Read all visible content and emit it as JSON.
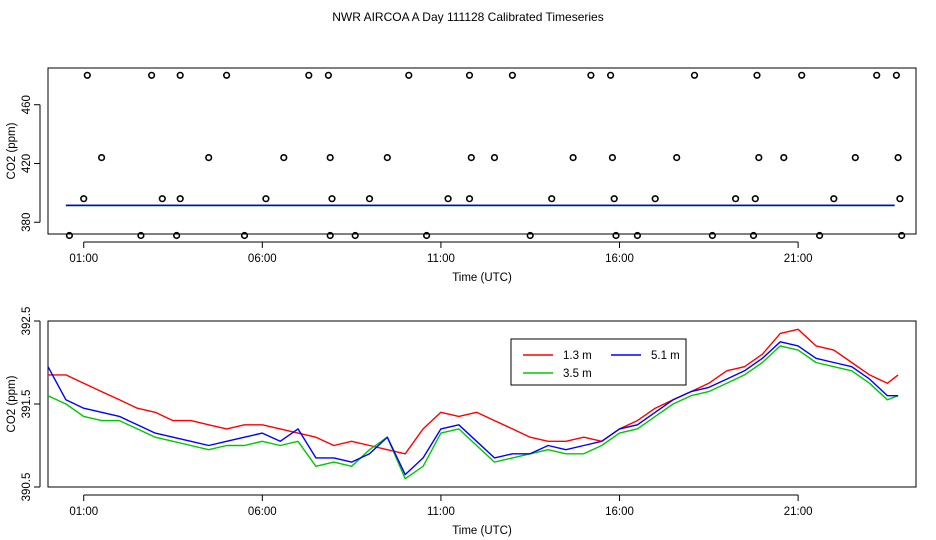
{
  "page_title": "NWR AIRCOA A  Day 111128  Calibrated Timeseries",
  "chart_data": [
    {
      "type": "scatter",
      "title": "",
      "xlabel": "Time (UTC)",
      "ylabel": "CO2 (ppm)",
      "xlim": [
        0.0,
        24.3
      ],
      "ylim": [
        372,
        485
      ],
      "x_ticks": [
        {
          "v": 1,
          "label": "01:00"
        },
        {
          "v": 6,
          "label": "06:00"
        },
        {
          "v": 11,
          "label": "11:00"
        },
        {
          "v": 16,
          "label": "16:00"
        },
        {
          "v": 21,
          "label": "21:00"
        }
      ],
      "y_ticks": [
        {
          "v": 380,
          "label": "380"
        },
        {
          "v": 420,
          "label": "420"
        },
        {
          "v": 460,
          "label": "460"
        }
      ],
      "lines": [
        {
          "color": "#ff0000",
          "x": [
            0.5,
            23.7
          ],
          "y": [
            391.6,
            391.6
          ]
        },
        {
          "color": "#00c800",
          "x": [
            0.5,
            23.7
          ],
          "y": [
            391.4,
            391.4
          ]
        },
        {
          "color": "#0000ff",
          "x": [
            0.5,
            23.7
          ],
          "y": [
            391.5,
            391.5
          ]
        }
      ],
      "points": {
        "marker": "open-circle",
        "x": [
          1.1,
          2.9,
          3.7,
          5.0,
          7.3,
          7.85,
          10.1,
          11.8,
          13.0,
          15.2,
          15.75,
          18.1,
          19.85,
          21.1,
          23.2,
          23.75,
          1.5,
          4.5,
          6.6,
          7.9,
          9.5,
          11.85,
          12.5,
          14.7,
          15.8,
          17.6,
          19.9,
          20.6,
          22.6,
          23.8,
          1.0,
          3.2,
          3.7,
          6.1,
          7.95,
          9.0,
          11.2,
          11.8,
          14.1,
          15.85,
          17.0,
          19.25,
          19.8,
          22.0,
          23.85,
          0.6,
          2.6,
          3.6,
          5.5,
          7.9,
          8.6,
          10.6,
          13.5,
          15.9,
          16.5,
          18.6,
          19.75,
          21.6,
          23.9
        ],
        "y": [
          480,
          480,
          480,
          480,
          480,
          480,
          480,
          480,
          480,
          480,
          480,
          480,
          480,
          480,
          480,
          480,
          424,
          424,
          424,
          424,
          424,
          424,
          424,
          424,
          424,
          424,
          424,
          424,
          424,
          424,
          396,
          396,
          396,
          396,
          396,
          396,
          396,
          396,
          396,
          396,
          396,
          396,
          396,
          396,
          396,
          371,
          371,
          371,
          371,
          371,
          371,
          371,
          371,
          371,
          371,
          371,
          371,
          371,
          371
        ]
      }
    },
    {
      "type": "line",
      "title": "",
      "xlabel": "Time (UTC)",
      "ylabel": "CO2 (ppm)",
      "xlim": [
        0.0,
        24.3
      ],
      "ylim": [
        390.5,
        392.5
      ],
      "x_ticks": [
        {
          "v": 1,
          "label": "01:00"
        },
        {
          "v": 6,
          "label": "06:00"
        },
        {
          "v": 11,
          "label": "11:00"
        },
        {
          "v": 16,
          "label": "16:00"
        },
        {
          "v": 21,
          "label": "21:00"
        }
      ],
      "y_ticks": [
        {
          "v": 390.5,
          "label": "390.5"
        },
        {
          "v": 391.5,
          "label": "391.5"
        },
        {
          "v": 392.5,
          "label": "392.5"
        }
      ],
      "legend_position": "top-right",
      "series": [
        {
          "name": "1.3 m",
          "color": "#ff0000",
          "x": [
            0.0,
            0.5,
            1.0,
            1.5,
            2.0,
            2.5,
            3.0,
            3.5,
            4.0,
            4.5,
            5.0,
            5.5,
            6.0,
            6.5,
            7.0,
            7.5,
            8.0,
            8.5,
            9.0,
            9.5,
            10.0,
            10.5,
            11.0,
            11.5,
            12.0,
            12.5,
            13.0,
            13.5,
            14.0,
            14.5,
            15.0,
            15.5,
            16.0,
            16.5,
            17.0,
            17.5,
            18.0,
            18.5,
            19.0,
            19.5,
            20.0,
            20.5,
            21.0,
            21.5,
            22.0,
            22.5,
            23.0,
            23.5,
            23.8
          ],
          "y": [
            391.85,
            391.85,
            391.75,
            391.65,
            391.55,
            391.45,
            391.4,
            391.3,
            391.3,
            391.25,
            391.2,
            391.25,
            391.25,
            391.2,
            391.15,
            391.1,
            391.0,
            391.05,
            391.0,
            390.95,
            390.9,
            391.2,
            391.4,
            391.35,
            391.4,
            391.3,
            391.2,
            391.1,
            391.05,
            391.05,
            391.1,
            391.05,
            391.2,
            391.3,
            391.45,
            391.55,
            391.65,
            391.75,
            391.9,
            391.95,
            392.1,
            392.35,
            392.4,
            392.2,
            392.15,
            392.0,
            391.85,
            391.75,
            391.85
          ]
        },
        {
          "name": "3.5 m",
          "color": "#00c800",
          "x": [
            0.0,
            0.5,
            1.0,
            1.5,
            2.0,
            2.5,
            3.0,
            3.5,
            4.0,
            4.5,
            5.0,
            5.5,
            6.0,
            6.5,
            7.0,
            7.5,
            8.0,
            8.5,
            9.0,
            9.5,
            10.0,
            10.5,
            11.0,
            11.5,
            12.0,
            12.5,
            13.0,
            13.5,
            14.0,
            14.5,
            15.0,
            15.5,
            16.0,
            16.5,
            17.0,
            17.5,
            18.0,
            18.5,
            19.0,
            19.5,
            20.0,
            20.5,
            21.0,
            21.5,
            22.0,
            22.5,
            23.0,
            23.5,
            23.8
          ],
          "y": [
            391.6,
            391.5,
            391.35,
            391.3,
            391.3,
            391.2,
            391.1,
            391.05,
            391.0,
            390.95,
            391.0,
            391.0,
            391.05,
            391.0,
            391.05,
            390.75,
            390.8,
            390.75,
            390.95,
            391.1,
            390.6,
            390.75,
            391.15,
            391.2,
            391.0,
            390.8,
            390.85,
            390.9,
            390.95,
            390.9,
            390.9,
            391.0,
            391.15,
            391.2,
            391.35,
            391.5,
            391.6,
            391.65,
            391.75,
            391.85,
            392.0,
            392.2,
            392.15,
            392.0,
            391.95,
            391.9,
            391.75,
            391.55,
            391.6
          ]
        },
        {
          "name": "5.1 m",
          "color": "#0000ff",
          "x": [
            0.0,
            0.5,
            1.0,
            1.5,
            2.0,
            2.5,
            3.0,
            3.5,
            4.0,
            4.5,
            5.0,
            5.5,
            6.0,
            6.5,
            7.0,
            7.5,
            8.0,
            8.5,
            9.0,
            9.5,
            10.0,
            10.5,
            11.0,
            11.5,
            12.0,
            12.5,
            13.0,
            13.5,
            14.0,
            14.5,
            15.0,
            15.5,
            16.0,
            16.5,
            17.0,
            17.5,
            18.0,
            18.5,
            19.0,
            19.5,
            20.0,
            20.5,
            21.0,
            21.5,
            22.0,
            22.5,
            23.0,
            23.5,
            23.8
          ],
          "y": [
            391.95,
            391.55,
            391.45,
            391.4,
            391.35,
            391.25,
            391.15,
            391.1,
            391.05,
            391.0,
            391.05,
            391.1,
            391.15,
            391.05,
            391.2,
            390.85,
            390.85,
            390.8,
            390.9,
            391.1,
            390.65,
            390.85,
            391.2,
            391.25,
            391.05,
            390.85,
            390.9,
            390.9,
            391.0,
            390.95,
            391.0,
            391.05,
            391.2,
            391.25,
            391.4,
            391.55,
            391.65,
            391.7,
            391.8,
            391.9,
            392.05,
            392.25,
            392.2,
            392.05,
            392.0,
            391.95,
            391.8,
            391.6,
            391.6
          ]
        }
      ]
    }
  ]
}
